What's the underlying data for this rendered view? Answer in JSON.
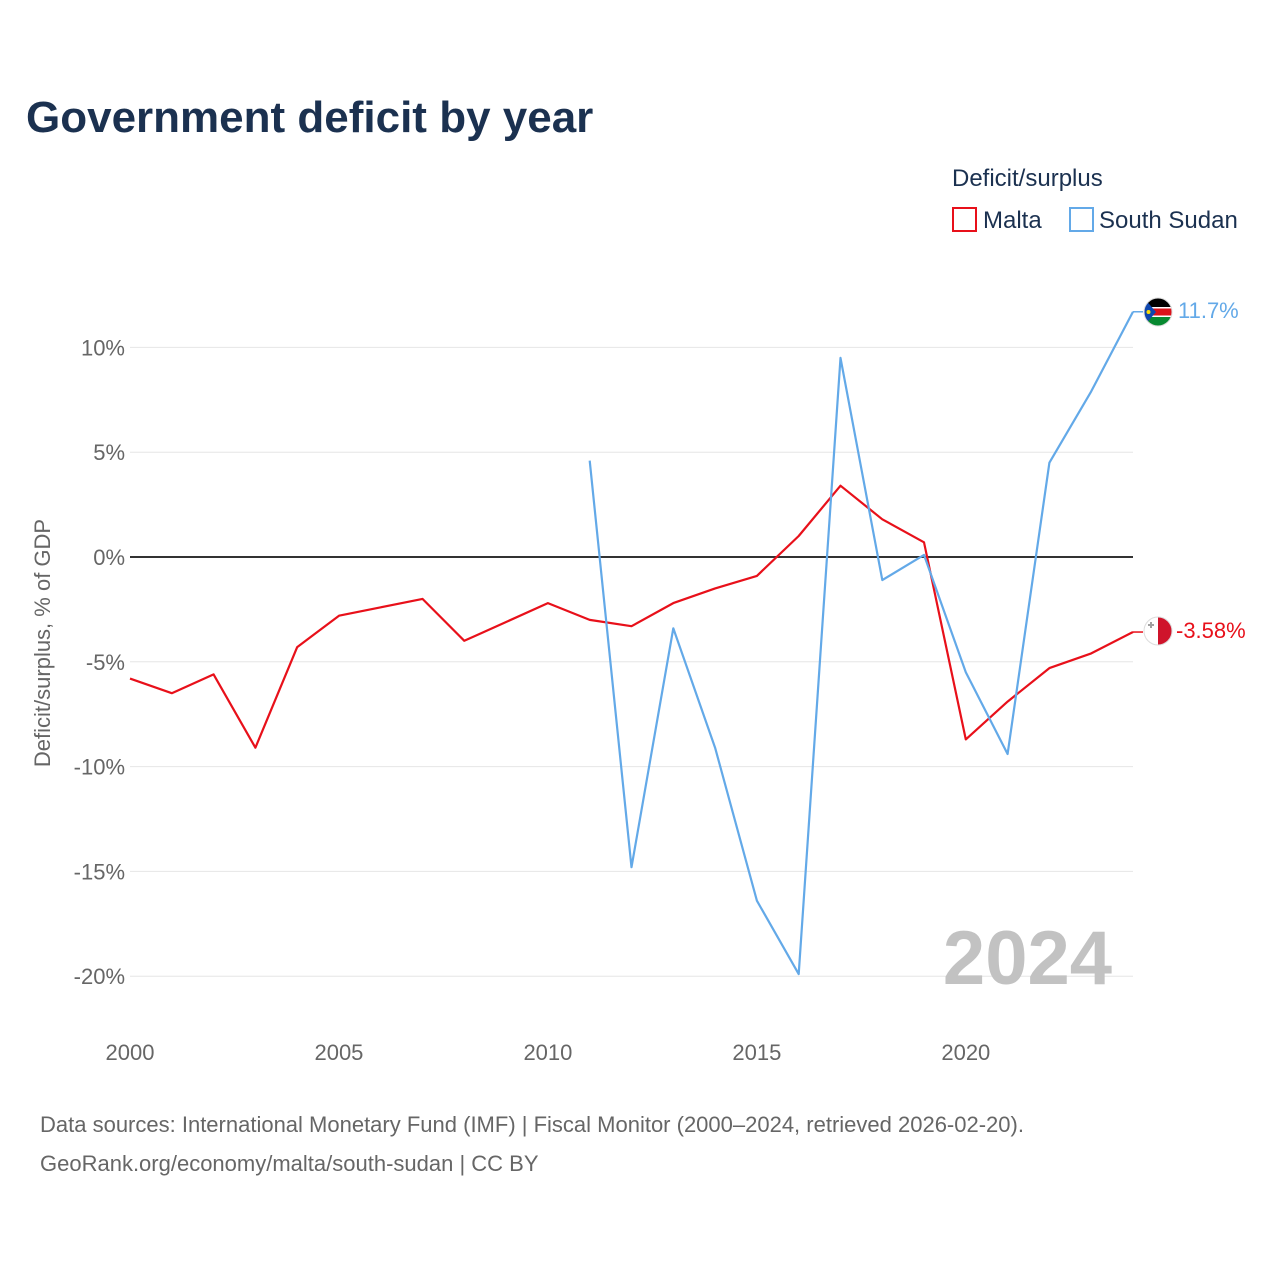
{
  "chart_data": {
    "type": "line",
    "title": "Government deficit by year",
    "legend_title": "Deficit/surplus",
    "legend_position": "top-right",
    "ylabel": "Deficit/surplus, % of GDP",
    "xlabel": "",
    "xlim": [
      2000,
      2024
    ],
    "ylim": [
      -22,
      13
    ],
    "x_ticks": [
      2000,
      2005,
      2010,
      2015,
      2020
    ],
    "x_tick_labels": [
      "2000",
      "2005",
      "2010",
      "2015",
      "2020"
    ],
    "y_ticks": [
      10,
      5,
      0,
      -5,
      -10,
      -15,
      -20
    ],
    "y_tick_labels": [
      "10%",
      "5%",
      "0%",
      "-5%",
      "-10%",
      "-15%",
      "-20%"
    ],
    "zero_line": true,
    "grid": true,
    "year_watermark": "2024",
    "series": [
      {
        "name": "Malta",
        "color": "#e8101a",
        "end_label": "-3.58%",
        "flag": "malta-flag",
        "x": [
          2000,
          2001,
          2002,
          2003,
          2004,
          2005,
          2006,
          2007,
          2008,
          2009,
          2010,
          2011,
          2012,
          2013,
          2014,
          2015,
          2016,
          2017,
          2018,
          2019,
          2020,
          2021,
          2022,
          2023,
          2024
        ],
        "values": [
          -5.8,
          -6.5,
          -5.6,
          -9.1,
          -4.3,
          -2.8,
          -2.4,
          -2.0,
          -4.0,
          -3.1,
          -2.2,
          -3.0,
          -3.3,
          -2.2,
          -1.5,
          -0.9,
          1.0,
          3.4,
          1.8,
          0.7,
          -8.7,
          -6.9,
          -5.3,
          -4.6,
          -3.58
        ]
      },
      {
        "name": "South Sudan",
        "color": "#63a9e8",
        "end_label": "11.7%",
        "flag": "south-sudan-flag",
        "x": [
          2011,
          2012,
          2013,
          2014,
          2015,
          2016,
          2017,
          2018,
          2019,
          2020,
          2021,
          2022,
          2023,
          2024
        ],
        "values": [
          4.6,
          -14.8,
          -3.4,
          -9.1,
          -16.4,
          -19.9,
          9.5,
          -1.1,
          0.1,
          -5.5,
          -9.4,
          4.5,
          7.9,
          11.7
        ]
      }
    ]
  },
  "footer": {
    "source_line": "Data sources: International Monetary Fund (IMF) | Fiscal Monitor (2000–2024, retrieved 2026-02-20).",
    "credit_line": "GeoRank.org/economy/malta/south-sudan | CC BY"
  }
}
